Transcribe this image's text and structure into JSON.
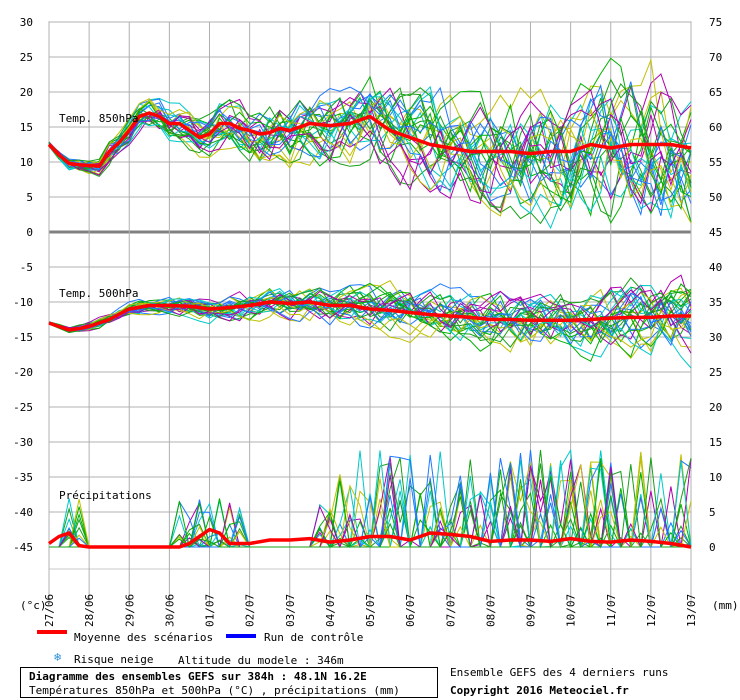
{
  "chart_data": {
    "type": "line",
    "left_axis": {
      "unit_label": "(°c)",
      "ticks": [
        30,
        25,
        20,
        15,
        10,
        5,
        0,
        -5,
        -10,
        -15,
        -20,
        -25,
        -30,
        -35,
        -40,
        -45
      ],
      "range": [
        -45,
        30
      ]
    },
    "right_axis_upper": {
      "ticks": [
        75,
        70,
        65,
        60,
        55,
        50,
        45
      ],
      "range": [
        45,
        75
      ]
    },
    "right_axis_lower": {
      "unit_label": "(mm)",
      "ticks": [
        40,
        35,
        30,
        25,
        20,
        15,
        10,
        5,
        0
      ],
      "range": [
        0,
        40
      ]
    },
    "x_labels": [
      "27/06",
      "28/06",
      "29/06",
      "30/06",
      "01/07",
      "02/07",
      "03/07",
      "04/07",
      "05/07",
      "06/07",
      "07/07",
      "08/07",
      "09/07",
      "10/07",
      "11/07",
      "12/07",
      "13/07"
    ],
    "panel_labels": {
      "t850": "Temp. 850hPa",
      "t500": "Temp. 500hPa",
      "precip": "Précipitations"
    },
    "series_mean_t850": {
      "name": "Moyenne des scénarios",
      "x": [
        0,
        0.25,
        0.5,
        0.75,
        1,
        1.25,
        1.5,
        1.75,
        2,
        2.25,
        2.5,
        2.75,
        3,
        3.25,
        3.5,
        3.75,
        4,
        4.25,
        4.5,
        4.75,
        5,
        5.25,
        5.5,
        5.75,
        6,
        6.5,
        7,
        7.5,
        8,
        8.5,
        9,
        9.5,
        10,
        10.5,
        11,
        11.5,
        12,
        12.5,
        13,
        13.5,
        14,
        14.5,
        15,
        15.5,
        16
      ],
      "values": [
        12.5,
        11,
        9.8,
        9.6,
        9.5,
        9.4,
        11.5,
        12.8,
        14.5,
        16.5,
        17,
        16.5,
        15.5,
        15.5,
        14.5,
        13.5,
        14,
        15.5,
        15.5,
        14.8,
        14.5,
        14,
        14.2,
        14.8,
        14.5,
        15.5,
        15.2,
        15.5,
        16.5,
        14.5,
        13.5,
        12.5,
        12,
        11.5,
        11.5,
        11.5,
        11.2,
        11.5,
        11.5,
        12.5,
        12,
        12.5,
        12.5,
        12.5,
        12
      ]
    },
    "series_mean_t500": {
      "name": "Moyenne des scénarios",
      "x": [
        0,
        0.25,
        0.5,
        0.75,
        1,
        1.5,
        2,
        2.5,
        3,
        3.5,
        4,
        4.5,
        5,
        5.5,
        6,
        6.5,
        7,
        7.5,
        8,
        8.5,
        9,
        9.5,
        10,
        10.5,
        11,
        11.5,
        12,
        12.5,
        13,
        13.5,
        14,
        14.5,
        15,
        15.5,
        16
      ],
      "values": [
        -13,
        -13.5,
        -14,
        -13.8,
        -13.5,
        -12.5,
        -11,
        -10.5,
        -10.5,
        -10.6,
        -11,
        -10.8,
        -10.5,
        -10,
        -10.2,
        -10,
        -10.5,
        -10.5,
        -11,
        -11.2,
        -11.5,
        -11.8,
        -12,
        -12.2,
        -12.5,
        -12.5,
        -12.6,
        -12.6,
        -12.6,
        -12.5,
        -12.3,
        -12.2,
        -12.2,
        -12,
        -12
      ]
    },
    "series_mean_precip": {
      "name": "Moyenne des scénarios",
      "x": [
        0,
        0.25,
        0.5,
        0.75,
        1,
        1.5,
        2,
        2.5,
        3,
        3.25,
        3.5,
        3.75,
        4,
        4.25,
        4.5,
        5,
        5.5,
        6,
        6.5,
        7,
        7.5,
        8,
        8.5,
        9,
        9.5,
        10,
        10.5,
        11,
        11.5,
        12,
        12.5,
        13,
        13.5,
        14,
        14.5,
        15,
        15.5,
        16
      ],
      "values": [
        -44.5,
        -43.5,
        -43,
        -44.8,
        -45,
        -45,
        -45,
        -45,
        -45,
        -45,
        -44.5,
        -43.5,
        -42.5,
        -43,
        -44.5,
        -44.5,
        -44,
        -44,
        -43.8,
        -44.3,
        -44,
        -43.5,
        -43.5,
        -44,
        -43,
        -43.2,
        -43.5,
        -44.2,
        -44,
        -44,
        -44.2,
        -43.8,
        -44.2,
        -44.3,
        -44,
        -44.2,
        -44.5,
        -45
      ]
    },
    "ensemble_colors": [
      "#00b000",
      "#00c8c8",
      "#c0c000",
      "#b000b0",
      "#1e78ff",
      "#18a018"
    ],
    "mean_color": "#ff0000",
    "control_color": "#0000ff"
  },
  "legend": {
    "mean_label": "Moyenne des scénarios",
    "control_label": "Run de contrôle",
    "snow_label": "Risque neige",
    "altitude_label": "Altitude du modele : 346m"
  },
  "footer": {
    "title": "Diagramme des ensembles GEFS sur 384h : 48.1N 16.2E",
    "subtitle": "Températures 850hPa et 500hPa (°C) , précipitations (mm)",
    "right_note": "Ensemble GEFS des 4 derniers runs",
    "copyright": "Copyright 2016 Meteociel.fr"
  }
}
